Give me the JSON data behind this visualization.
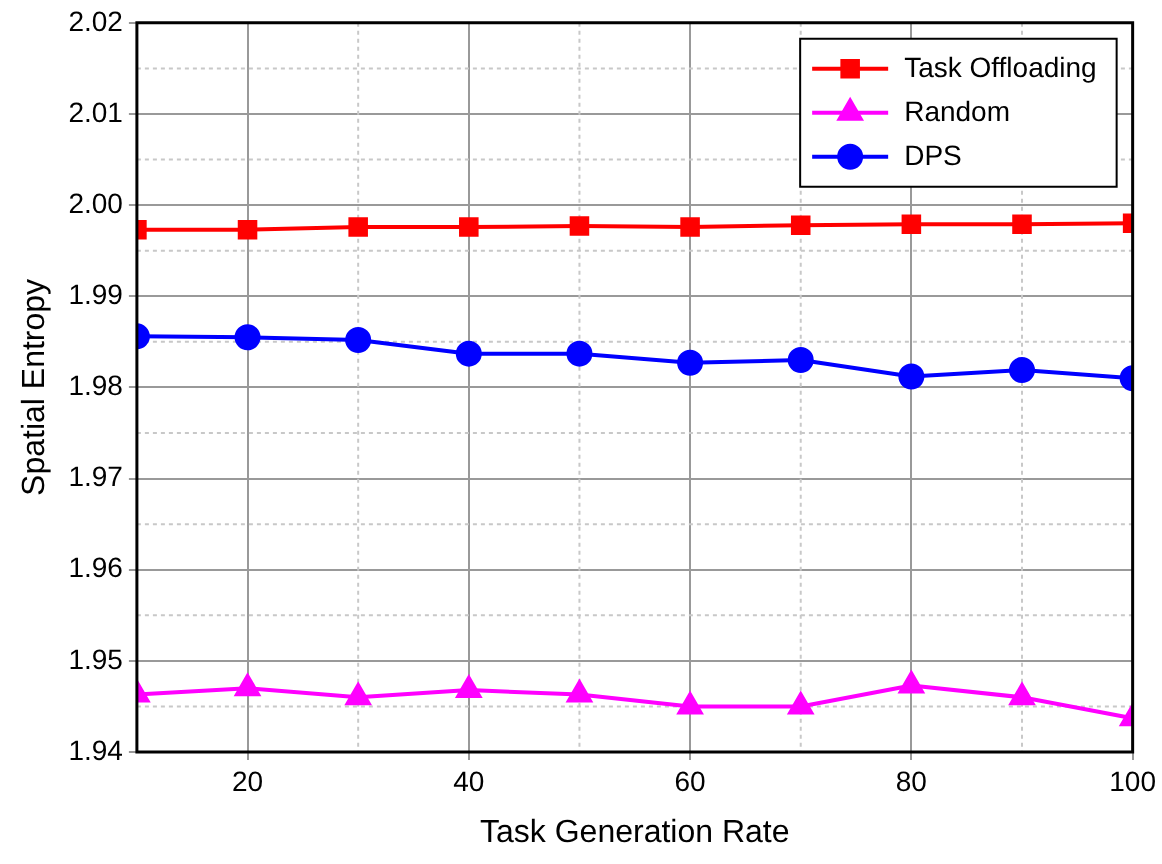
{
  "chart_data": {
    "type": "line",
    "xlabel": "Task Generation Rate",
    "ylabel": "Spatial Entropy",
    "x": [
      10,
      20,
      30,
      40,
      50,
      60,
      70,
      80,
      90,
      100
    ],
    "series": [
      {
        "name": "Task Offloading",
        "color": "#ff0000",
        "marker": "square",
        "values": [
          1.9973,
          1.9973,
          1.9976,
          1.9976,
          1.9977,
          1.9976,
          1.9978,
          1.9979,
          1.9979,
          1.998
        ]
      },
      {
        "name": "Random",
        "color": "#ff00ff",
        "marker": "triangle",
        "values": [
          1.9463,
          1.947,
          1.946,
          1.9468,
          1.9463,
          1.945,
          1.945,
          1.9473,
          1.946,
          1.9437
        ]
      },
      {
        "name": "DPS",
        "color": "#0000ff",
        "marker": "circle",
        "values": [
          1.9856,
          1.9855,
          1.9852,
          1.9837,
          1.9837,
          1.9827,
          1.983,
          1.9812,
          1.9819,
          1.981
        ]
      }
    ],
    "xlim": [
      10,
      100
    ],
    "xticks": [
      20,
      40,
      60,
      80,
      100
    ],
    "ylim": [
      1.94,
      2.02
    ],
    "yticks": [
      {
        "value": 1.94,
        "label": "1.94"
      },
      {
        "value": 1.95,
        "label": "1.95"
      },
      {
        "value": 1.96,
        "label": "1.96"
      },
      {
        "value": 1.97,
        "label": "1.97"
      },
      {
        "value": 1.98,
        "label": "1.98"
      },
      {
        "value": 1.99,
        "label": "1.99"
      },
      {
        "value": 2.0,
        "label": "2.00"
      },
      {
        "value": 2.01,
        "label": "2.01"
      },
      {
        "value": 2.02,
        "label": "2.02"
      }
    ],
    "grid": true,
    "legend": "top right",
    "line_style": "solid"
  }
}
